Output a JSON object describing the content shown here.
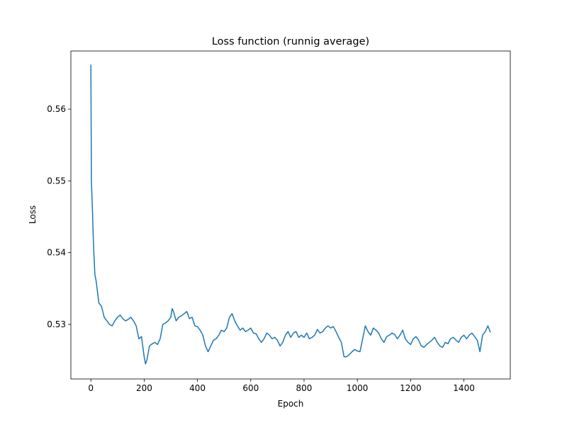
{
  "chart_data": {
    "type": "line",
    "title": "Loss function (runnig average)",
    "xlabel": "Epoch",
    "ylabel": "Loss",
    "xlim": [
      -75,
      1574
    ],
    "ylim": [
      0.5224,
      0.5681
    ],
    "xticks": [
      0,
      200,
      400,
      600,
      800,
      1000,
      1200,
      1400
    ],
    "yticks": [
      0.53,
      0.54,
      0.55,
      0.56
    ],
    "grid": false,
    "x": [
      0,
      2,
      5,
      10,
      15,
      20,
      30,
      40,
      50,
      60,
      70,
      80,
      90,
      100,
      110,
      120,
      130,
      140,
      150,
      160,
      170,
      180,
      190,
      200,
      205,
      210,
      220,
      230,
      240,
      250,
      260,
      270,
      280,
      290,
      300,
      305,
      310,
      320,
      330,
      340,
      350,
      360,
      370,
      380,
      390,
      400,
      410,
      420,
      430,
      440,
      450,
      460,
      470,
      480,
      490,
      500,
      510,
      520,
      530,
      540,
      550,
      560,
      570,
      580,
      590,
      600,
      610,
      620,
      630,
      640,
      650,
      660,
      670,
      680,
      690,
      700,
      710,
      720,
      730,
      740,
      750,
      760,
      770,
      780,
      790,
      800,
      810,
      820,
      830,
      840,
      850,
      860,
      870,
      880,
      890,
      900,
      910,
      920,
      930,
      940,
      950,
      960,
      970,
      980,
      990,
      1000,
      1010,
      1020,
      1030,
      1040,
      1050,
      1060,
      1070,
      1080,
      1090,
      1100,
      1110,
      1120,
      1130,
      1140,
      1150,
      1160,
      1170,
      1180,
      1190,
      1200,
      1210,
      1220,
      1230,
      1240,
      1250,
      1260,
      1270,
      1280,
      1290,
      1300,
      1310,
      1320,
      1330,
      1340,
      1350,
      1360,
      1370,
      1380,
      1390,
      1400,
      1410,
      1420,
      1430,
      1440,
      1450,
      1460,
      1470,
      1480,
      1490,
      1499
    ],
    "series": [
      {
        "color": "#1f77b4",
        "values": [
          0.5662,
          0.55,
          0.547,
          0.541,
          0.537,
          0.536,
          0.533,
          0.5325,
          0.531,
          0.5305,
          0.53,
          0.5298,
          0.5305,
          0.531,
          0.5313,
          0.5308,
          0.5305,
          0.5307,
          0.531,
          0.5305,
          0.5298,
          0.528,
          0.5283,
          0.5255,
          0.5245,
          0.525,
          0.527,
          0.5273,
          0.5275,
          0.5272,
          0.528,
          0.53,
          0.5302,
          0.5305,
          0.531,
          0.5322,
          0.5318,
          0.5305,
          0.531,
          0.5312,
          0.5315,
          0.5318,
          0.5308,
          0.531,
          0.5298,
          0.5297,
          0.5292,
          0.5285,
          0.527,
          0.5262,
          0.527,
          0.5278,
          0.528,
          0.5285,
          0.5292,
          0.529,
          0.5295,
          0.531,
          0.5315,
          0.5305,
          0.5298,
          0.5292,
          0.5295,
          0.529,
          0.5292,
          0.5295,
          0.5288,
          0.5287,
          0.528,
          0.5275,
          0.528,
          0.5288,
          0.5285,
          0.528,
          0.5282,
          0.5278,
          0.527,
          0.5275,
          0.5285,
          0.529,
          0.5282,
          0.5288,
          0.529,
          0.5282,
          0.5285,
          0.5282,
          0.5288,
          0.528,
          0.5282,
          0.5285,
          0.5293,
          0.5288,
          0.529,
          0.5295,
          0.5298,
          0.5295,
          0.5297,
          0.529,
          0.5282,
          0.5275,
          0.5255,
          0.5255,
          0.5258,
          0.5262,
          0.5265,
          0.5263,
          0.5262,
          0.528,
          0.5298,
          0.529,
          0.5285,
          0.5295,
          0.5292,
          0.5288,
          0.528,
          0.5275,
          0.5283,
          0.5285,
          0.5288,
          0.5286,
          0.528,
          0.5285,
          0.5292,
          0.528,
          0.5275,
          0.5272,
          0.528,
          0.5283,
          0.5278,
          0.527,
          0.5268,
          0.5272,
          0.5275,
          0.5278,
          0.5282,
          0.5275,
          0.527,
          0.5268,
          0.5275,
          0.5273,
          0.528,
          0.5282,
          0.5278,
          0.5275,
          0.5282,
          0.5285,
          0.528,
          0.5285,
          0.5288,
          0.5283,
          0.5278,
          0.5262,
          0.5285,
          0.529,
          0.5298,
          0.5289
        ]
      }
    ]
  }
}
